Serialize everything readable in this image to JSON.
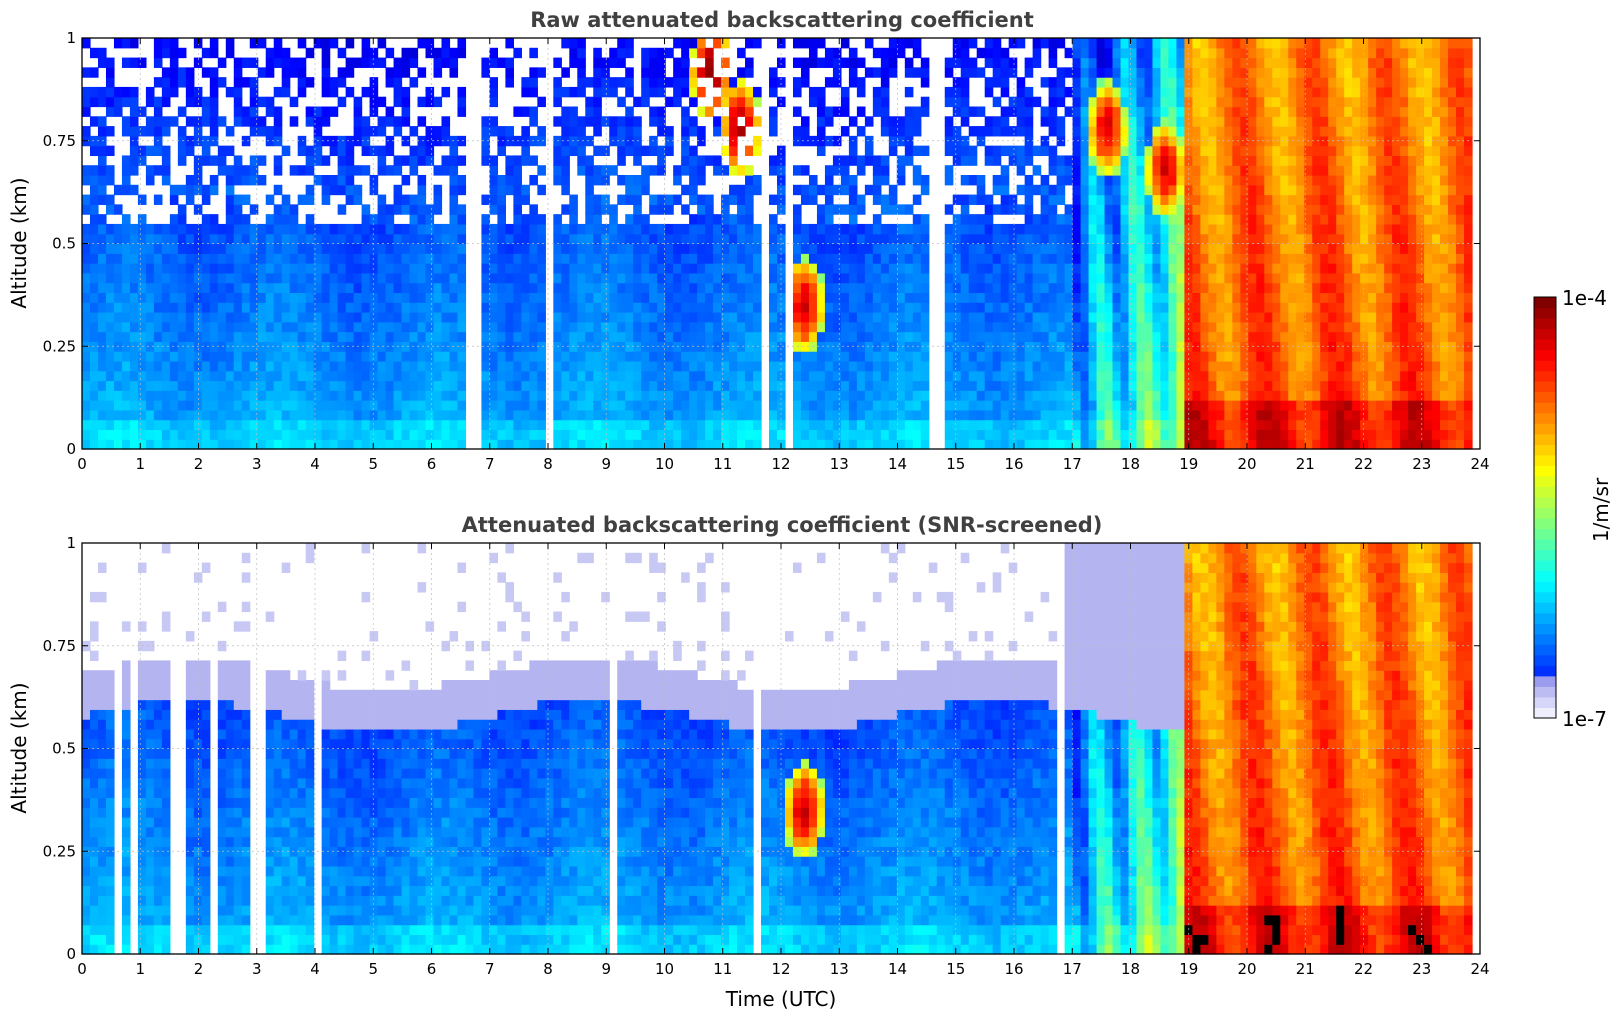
{
  "chart_data": [
    {
      "type": "heatmap",
      "title": "Raw attenuated backscattering coefficient",
      "xlabel": "",
      "ylabel": "Altitude (km)",
      "xlim": [
        0,
        24
      ],
      "ylim": [
        0,
        1
      ],
      "xticks": [
        "0",
        "1",
        "2",
        "3",
        "4",
        "5",
        "6",
        "7",
        "8",
        "9",
        "10",
        "11",
        "12",
        "13",
        "14",
        "15",
        "16",
        "17",
        "18",
        "19",
        "20",
        "21",
        "22",
        "23",
        "24"
      ],
      "yticks": [
        "0",
        "0.25",
        "0.5",
        "0.75",
        "1"
      ],
      "screened": false,
      "features": {
        "boundary_layer_top_km": 0.58,
        "cloud_cells": [
          {
            "t": 10.8,
            "z": 0.92,
            "level": 0.98
          },
          {
            "t": 11.3,
            "z": 0.78,
            "level": 0.95
          },
          {
            "t": 12.4,
            "z": 0.35,
            "level": 0.92
          },
          {
            "t": 17.6,
            "z": 0.78,
            "level": 0.9
          },
          {
            "t": 18.6,
            "z": 0.68,
            "level": 0.9
          }
        ],
        "precip_start_hour": 18.9,
        "precip_end_hour": 23.8
      }
    },
    {
      "type": "heatmap",
      "title": "Attenuated backscattering coefficient (SNR-screened)",
      "xlabel": "Time (UTC)",
      "ylabel": "Altitude (km)",
      "xlim": [
        0,
        24
      ],
      "ylim": [
        0,
        1
      ],
      "xticks": [
        "0",
        "1",
        "2",
        "3",
        "4",
        "5",
        "6",
        "7",
        "8",
        "9",
        "10",
        "11",
        "12",
        "13",
        "14",
        "15",
        "16",
        "17",
        "18",
        "19",
        "20",
        "21",
        "22",
        "23",
        "24"
      ],
      "yticks": [
        "0",
        "0.25",
        "0.5",
        "0.75",
        "1"
      ],
      "screened": true
    }
  ],
  "colorbar": {
    "max_label": "1e-4",
    "min_label": "1e-7",
    "unit": "1/m/sr",
    "colormap": "jet"
  }
}
